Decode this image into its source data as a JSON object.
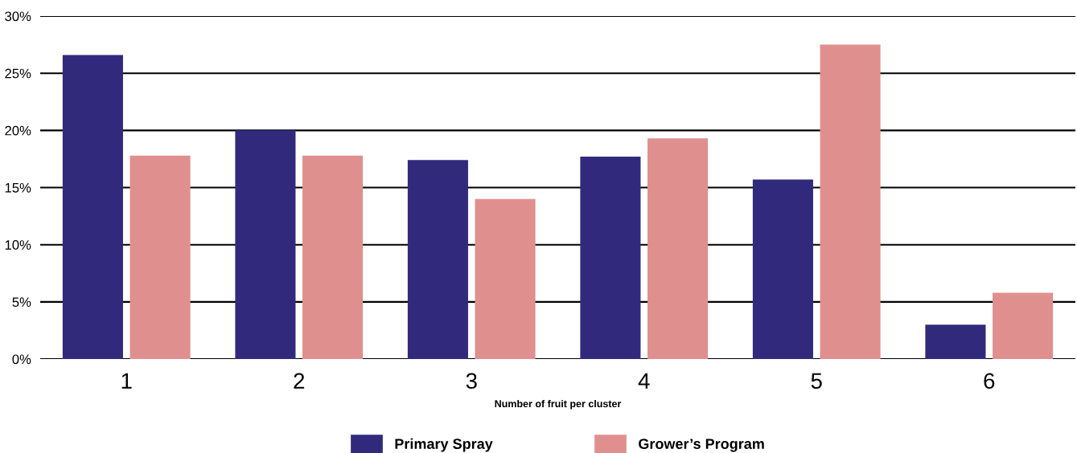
{
  "chart_data": {
    "type": "bar",
    "xlabel": "Number of fruit per cluster",
    "categories": [
      "1",
      "2",
      "3",
      "4",
      "5",
      "6"
    ],
    "series": [
      {
        "name": "Primary Spray",
        "color": "#312a7c",
        "values": [
          26.6,
          20.0,
          17.4,
          17.7,
          15.7,
          3.0
        ]
      },
      {
        "name": "Grower’s Program",
        "color": "#e08f8f",
        "values": [
          17.8,
          17.8,
          14.0,
          19.3,
          27.5,
          5.8
        ]
      }
    ],
    "ylim": [
      0,
      30
    ],
    "yticks": [
      {
        "value": 0,
        "label": "0%"
      },
      {
        "value": 5,
        "label": "5%"
      },
      {
        "value": 10,
        "label": "10%"
      },
      {
        "value": 15,
        "label": "15%"
      },
      {
        "value": 20,
        "label": "20%"
      },
      {
        "value": 25,
        "label": "25%"
      },
      {
        "value": 30,
        "label": "30%"
      }
    ],
    "grid": "y",
    "legend": "bottom"
  }
}
